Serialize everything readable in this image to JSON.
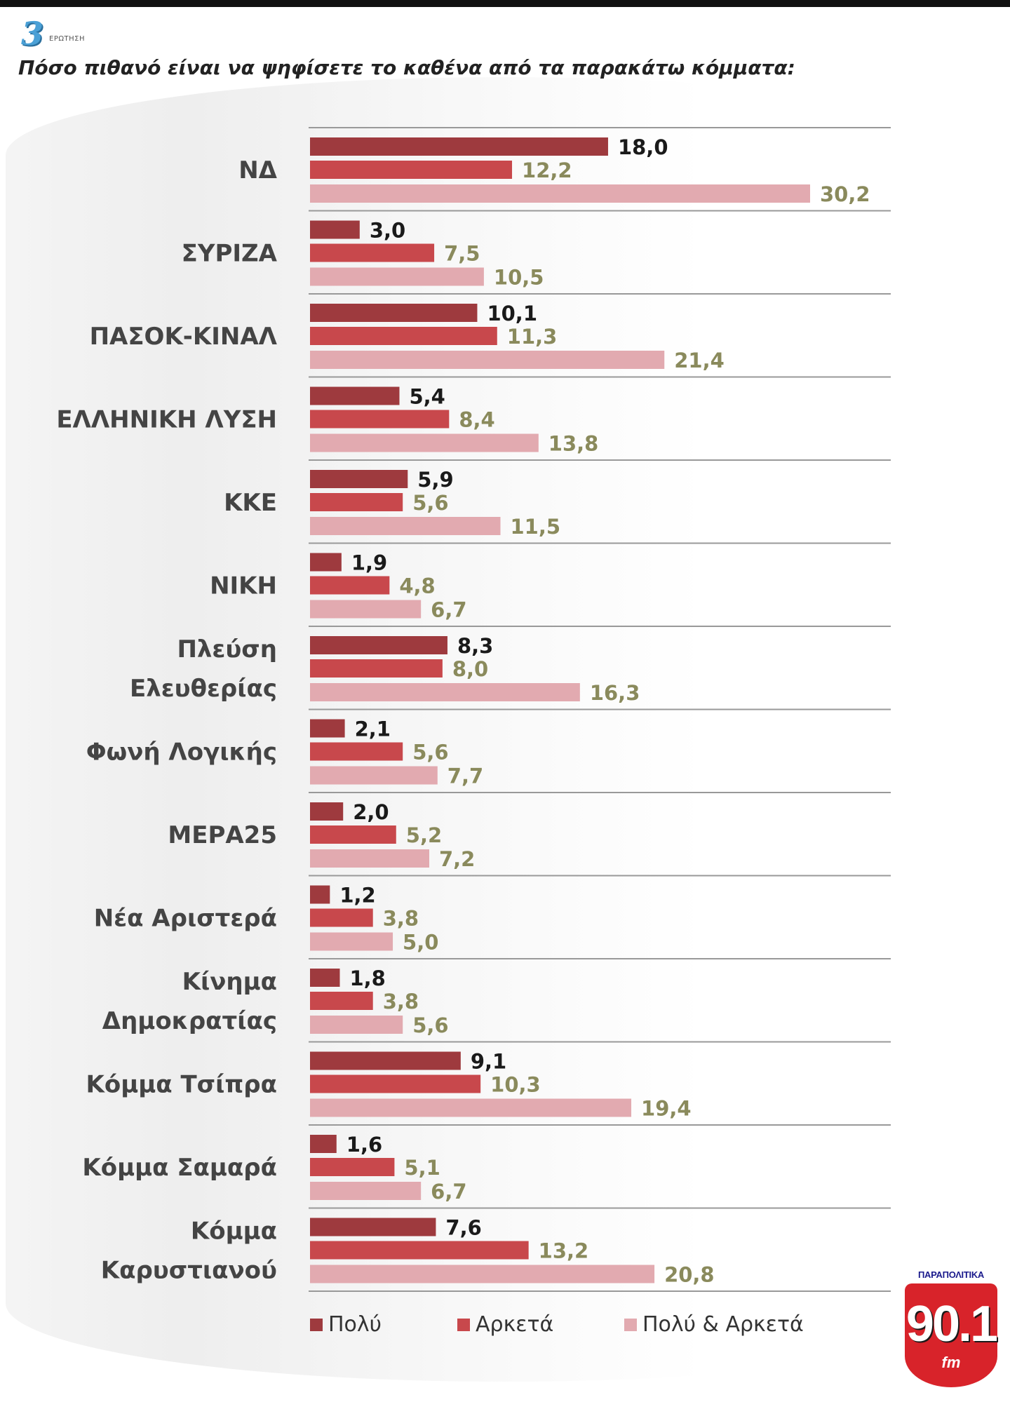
{
  "header": {
    "number": "3",
    "tag": "ΕΡΩΤΗΣΗ",
    "question": "Πόσο πιθανό είναι να ψηφίσετε το καθένα από τα παρακάτω κόμματα:"
  },
  "colors": {
    "polu": "#9e3a3e",
    "arketa": "#c8484c",
    "both": "#e2aab0",
    "separator": "#999999"
  },
  "chart_data": {
    "type": "bar",
    "orientation": "horizontal",
    "title": "Πόσο πιθανό είναι να ψηφίσετε το καθένα από τα παρακάτω κόμματα:",
    "categories": [
      [
        "ΝΔ"
      ],
      [
        "ΣΥΡΙΖΑ"
      ],
      [
        "ΠΑΣΟΚ-ΚΙΝΑΛ"
      ],
      [
        "ΕΛΛΗΝΙΚΗ ΛΥΣΗ"
      ],
      [
        "ΚΚΕ"
      ],
      [
        "ΝΙΚΗ"
      ],
      [
        "Πλεύση",
        "Ελευθερίας"
      ],
      [
        "Φωνή Λογικής"
      ],
      [
        "ΜΕΡΑ25"
      ],
      [
        "Νέα Αριστερά"
      ],
      [
        "Κίνημα",
        "Δημοκρατίας"
      ],
      [
        "Κόμμα Τσίπρα"
      ],
      [
        "Κόμμα Σαμαρά"
      ],
      [
        "Κόμμα",
        "Καρυστιανού"
      ]
    ],
    "series": [
      {
        "name": "Πολύ",
        "values": [
          18.0,
          3.0,
          10.1,
          5.4,
          5.9,
          1.9,
          8.3,
          2.1,
          2.0,
          1.2,
          1.8,
          9.1,
          1.6,
          7.6
        ],
        "labels": [
          "18,0",
          "3,0",
          "10,1",
          "5,4",
          "5,9",
          "1,9",
          "8,3",
          "2,1",
          "2,0",
          "1,2",
          "1,8",
          "9,1",
          "1,6",
          "7,6"
        ]
      },
      {
        "name": "Αρκετά",
        "values": [
          12.2,
          7.5,
          11.3,
          8.4,
          5.6,
          4.8,
          8.0,
          5.6,
          5.2,
          3.8,
          3.8,
          10.3,
          5.1,
          13.2
        ],
        "labels": [
          "12,2",
          "7,5",
          "11,3",
          "8,4",
          "5,6",
          "4,8",
          "8,0",
          "5,6",
          "5,2",
          "3,8",
          "3,8",
          "10,3",
          "5,1",
          "13,2"
        ]
      },
      {
        "name": "Πολύ & Αρκετά",
        "values": [
          30.2,
          10.5,
          21.4,
          13.8,
          11.5,
          6.7,
          16.3,
          7.7,
          7.2,
          5.0,
          5.6,
          19.4,
          6.7,
          20.8
        ],
        "labels": [
          "30,2",
          "10,5",
          "21,4",
          "13,8",
          "11,5",
          "6,7",
          "16,3",
          "7,7",
          "7,2",
          "5,0",
          "5,6",
          "19,4",
          "6,7",
          "20,8"
        ]
      }
    ],
    "xlim": [
      0,
      30.2
    ],
    "legend": "bottom"
  },
  "logo": {
    "top": "ΠΑΡΑΠΟΛΙΤΙΚΑ",
    "number": "90.1",
    "fm": "fm"
  }
}
